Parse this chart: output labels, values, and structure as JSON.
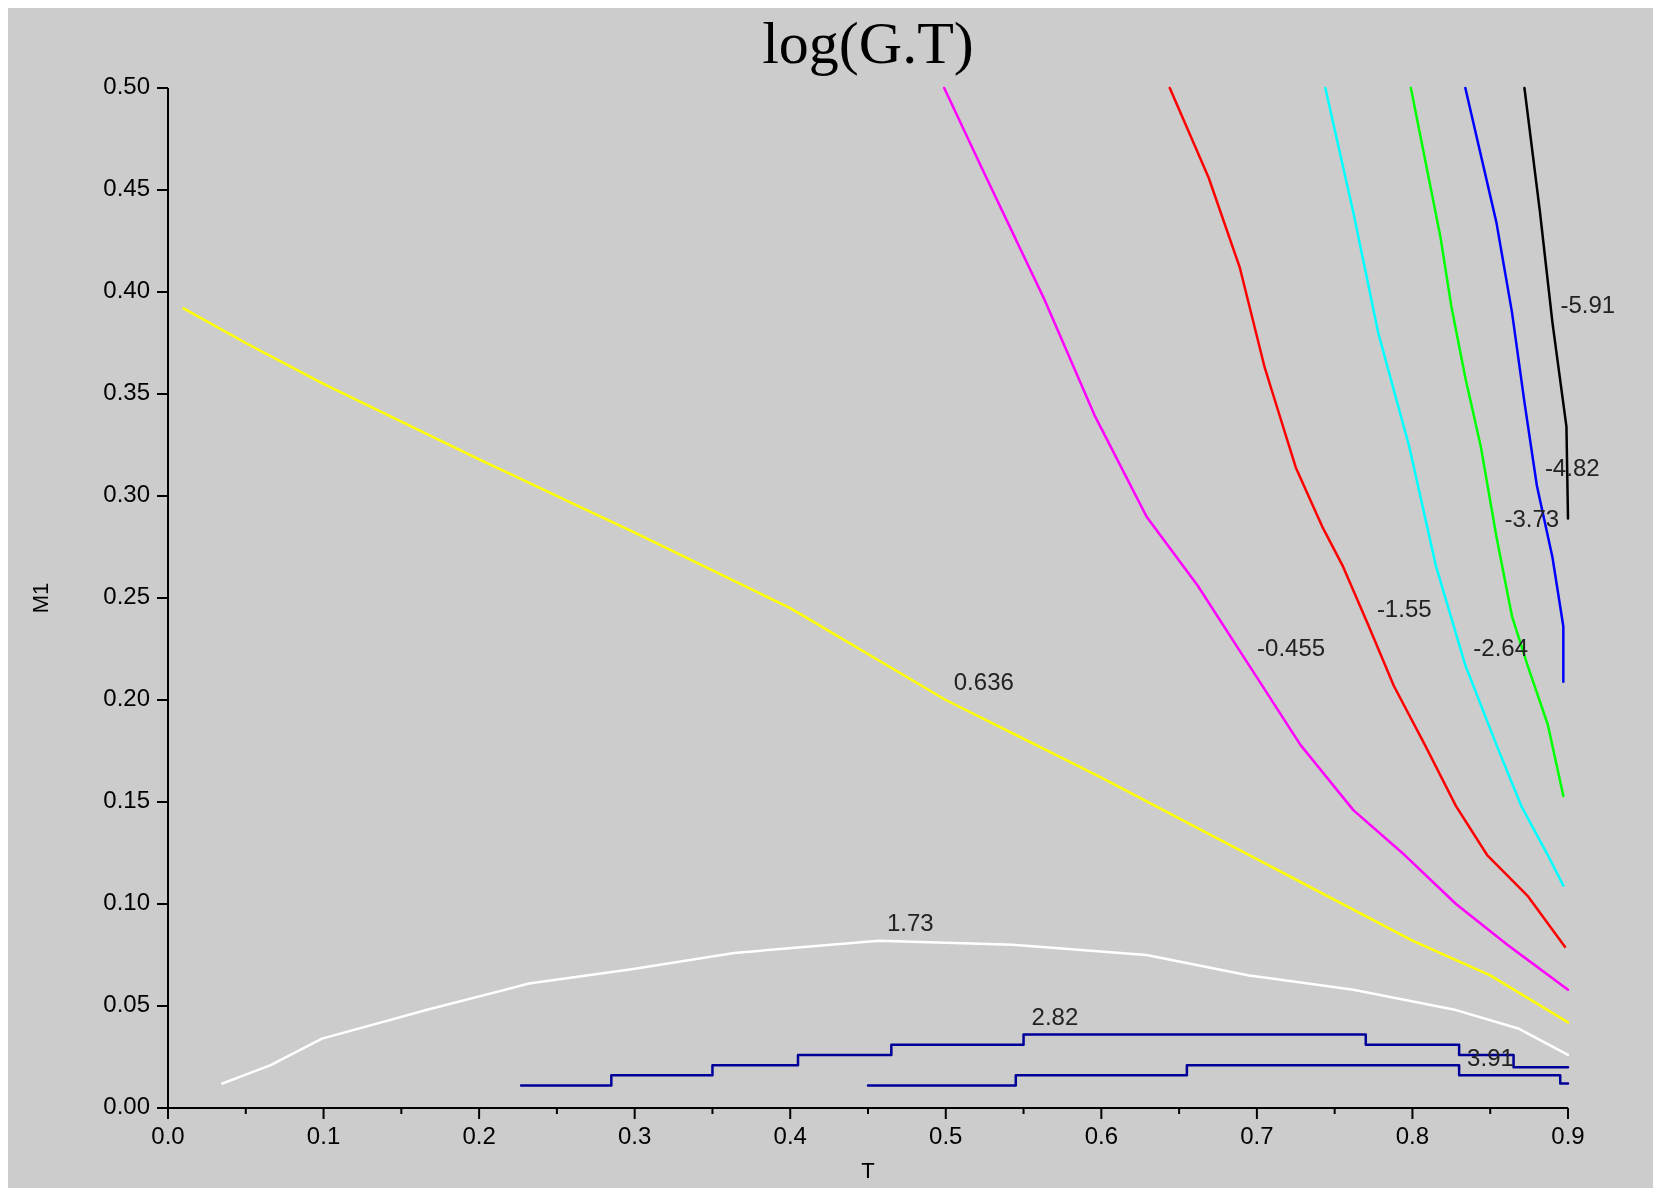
{
  "chart_data": {
    "type": "line",
    "title": "log(G.T)",
    "xlabel": "T",
    "ylabel": "M1",
    "xlim": [
      0,
      0.9
    ],
    "ylim": [
      0,
      0.5
    ],
    "xticks": [
      {
        "value": 0,
        "label": "0.0"
      },
      {
        "value": 0.05,
        "label": null
      },
      0.1,
      {
        "value": 0.15,
        "label": null
      },
      0.2,
      {
        "value": 0.25,
        "label": null
      },
      0.3,
      {
        "value": 0.35,
        "label": null
      },
      0.4,
      {
        "value": 0.45,
        "label": null
      },
      0.5,
      {
        "value": 0.55,
        "label": null
      },
      0.6,
      {
        "value": 0.65,
        "label": null
      },
      0.7,
      {
        "value": 0.75,
        "label": null
      },
      0.8,
      {
        "value": 0.85,
        "label": null
      },
      0.9
    ],
    "yticks": [
      {
        "value": 0,
        "label": "0.00"
      },
      0.05,
      {
        "value": 0.1,
        "label": "0.10"
      },
      0.15,
      {
        "value": 0.2,
        "label": "0.20"
      },
      0.25,
      {
        "value": 0.3,
        "label": "0.30"
      },
      0.35,
      {
        "value": 0.4,
        "label": "0.40"
      },
      0.45,
      {
        "value": 0.5,
        "label": "0.50"
      }
    ],
    "grid": false,
    "series": [
      {
        "name": "0.636",
        "color": "#ffff00",
        "x": [
          0.01,
          0.05,
          0.1,
          0.2,
          0.3,
          0.4,
          0.5,
          0.6,
          0.7,
          0.8,
          0.85,
          0.9
        ],
        "values": [
          0.392,
          0.375,
          0.355,
          0.318,
          0.282,
          0.245,
          0.2,
          0.162,
          0.122,
          0.082,
          0.065,
          0.042
        ]
      },
      {
        "name": "-0.455",
        "color": "#ff00ff",
        "x": [
          0.499,
          0.523,
          0.563,
          0.596,
          0.629,
          0.662,
          0.695,
          0.728,
          0.762,
          0.795,
          0.828,
          0.861,
          0.9
        ],
        "values": [
          0.5,
          0.461,
          0.397,
          0.339,
          0.29,
          0.256,
          0.217,
          0.178,
          0.146,
          0.124,
          0.1,
          0.08,
          0.058
        ]
      },
      {
        "name": "-1.55",
        "color": "#ff0000",
        "x": [
          0.644,
          0.669,
          0.689,
          0.705,
          0.725,
          0.742,
          0.755,
          0.772,
          0.788,
          0.808,
          0.828,
          0.848,
          0.874,
          0.898
        ],
        "values": [
          0.5,
          0.456,
          0.412,
          0.363,
          0.314,
          0.285,
          0.266,
          0.236,
          0.207,
          0.178,
          0.148,
          0.124,
          0.104,
          0.079
        ]
      },
      {
        "name": "-2.64",
        "color": "#00ffff",
        "x": [
          0.744,
          0.762,
          0.778,
          0.798,
          0.815,
          0.834,
          0.854,
          0.87,
          0.887,
          0.897
        ],
        "values": [
          0.5,
          0.439,
          0.38,
          0.324,
          0.266,
          0.217,
          0.178,
          0.148,
          0.124,
          0.109
        ]
      },
      {
        "name": "-3.73",
        "color": "#00ff00",
        "x": [
          0.799,
          0.818,
          0.825,
          0.834,
          0.844,
          0.854,
          0.864,
          0.874,
          0.887,
          0.897
        ],
        "values": [
          0.5,
          0.427,
          0.393,
          0.358,
          0.324,
          0.28,
          0.241,
          0.217,
          0.188,
          0.153
        ]
      },
      {
        "name": "-4.82",
        "color": "#0000ff",
        "x": [
          0.834,
          0.854,
          0.864,
          0.872,
          0.88,
          0.89,
          0.897,
          0.897
        ],
        "values": [
          0.5,
          0.434,
          0.39,
          0.346,
          0.305,
          0.27,
          0.236,
          0.209
        ]
      },
      {
        "name": "-5.91",
        "color": "#000000",
        "x": [
          0.872,
          0.882,
          0.89,
          0.899,
          0.9
        ],
        "values": [
          0.5,
          0.439,
          0.385,
          0.334,
          0.289
        ]
      },
      {
        "name": "1.73",
        "color": "#ffffff",
        "x": [
          0.035,
          0.066,
          0.099,
          0.166,
          0.232,
          0.298,
          0.364,
          0.457,
          0.543,
          0.629,
          0.695,
          0.762,
          0.828,
          0.868,
          0.9
        ],
        "values": [
          0.012,
          0.021,
          0.034,
          0.048,
          0.061,
          0.068,
          0.076,
          0.082,
          0.08,
          0.075,
          0.065,
          0.058,
          0.048,
          0.039,
          0.026
        ]
      },
      {
        "name": "2.82",
        "type": "step",
        "color": "#000099",
        "x": [
          0.227,
          0.285,
          0.35,
          0.405,
          0.465,
          0.55,
          0.77,
          0.83,
          0.865,
          0.9
        ],
        "values": [
          0.011,
          0.016,
          0.021,
          0.026,
          0.031,
          0.036,
          0.031,
          0.026,
          0.02,
          0.02
        ]
      },
      {
        "name": "3.91",
        "type": "step",
        "color": "#000099",
        "x": [
          0.45,
          0.545,
          0.655,
          0.83,
          0.895,
          0.9
        ],
        "values": [
          0.011,
          0.016,
          0.021,
          0.016,
          0.012,
          0.012
        ]
      }
    ]
  }
}
